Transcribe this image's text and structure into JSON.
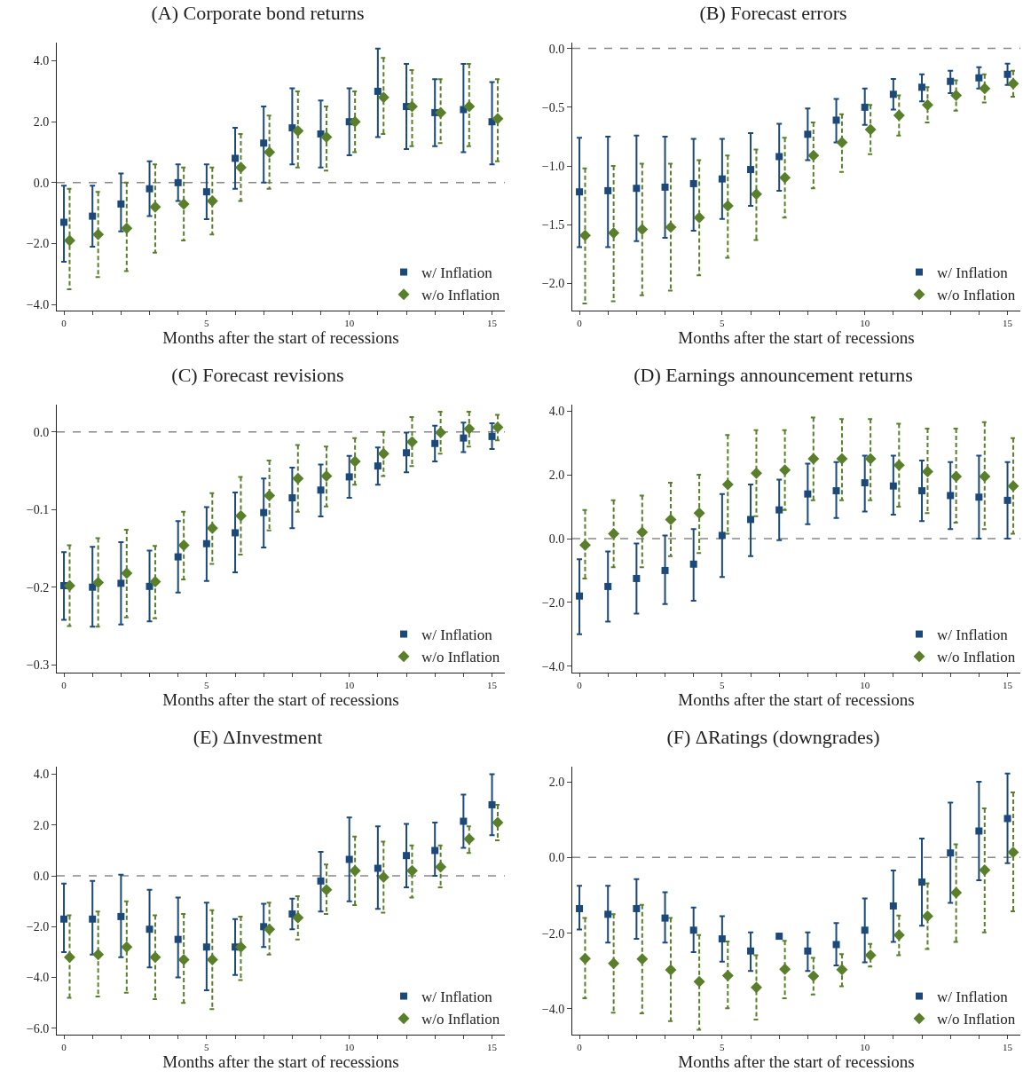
{
  "chart_data": [
    {
      "type": "scatter",
      "title": "(A) Corporate bond returns",
      "xlabel": "Months after the start of recessions",
      "legend": "bottom right",
      "grid": false,
      "xlim": [
        -0.25,
        15.45
      ],
      "xticks": [
        0,
        {
          "value": 1,
          "label": null
        },
        {
          "value": 2,
          "label": null
        },
        {
          "value": 3,
          "label": null
        },
        {
          "value": 4,
          "label": null
        },
        5,
        {
          "value": 6,
          "label": null
        },
        {
          "value": 7,
          "label": null
        },
        {
          "value": 8,
          "label": null
        },
        {
          "value": 9,
          "label": null
        },
        10,
        {
          "value": 11,
          "label": null
        },
        {
          "value": 12,
          "label": null
        },
        {
          "value": 13,
          "label": null
        },
        {
          "value": 14,
          "label": null
        },
        15
      ],
      "ylim": [
        -4.2,
        4.6
      ],
      "yticks": [
        {
          "value": -4,
          "label": "−4.0"
        },
        {
          "value": -2,
          "label": "−2.0"
        },
        {
          "value": 0,
          "label": "0.0"
        },
        {
          "value": 2,
          "label": "2.0"
        },
        {
          "value": 4,
          "label": "4.0"
        }
      ],
      "ref_lines": [
        {
          "axis": "y",
          "value": 0,
          "color": "#888888",
          "line_style": "dashed"
        }
      ],
      "series": [
        {
          "name": "w/ Inflation",
          "color": "#1b4a7a",
          "marker": "square",
          "line_style": "solid",
          "x": [
            0,
            1,
            2,
            3,
            4,
            5,
            6,
            7,
            8,
            9,
            10,
            11,
            12,
            13,
            14,
            15
          ],
          "values": [
            -1.3,
            -1.1,
            -0.7,
            -0.2,
            0.0,
            -0.3,
            0.8,
            1.3,
            1.8,
            1.6,
            2.0,
            3.0,
            2.5,
            2.3,
            2.4,
            2.0
          ],
          "errors": [
            [
              -2.6,
              -0.1
            ],
            [
              -2.1,
              -0.1
            ],
            [
              -1.6,
              0.3
            ],
            [
              -1.1,
              0.7
            ],
            [
              -0.6,
              0.6
            ],
            [
              -1.2,
              0.6
            ],
            [
              -0.2,
              1.8
            ],
            [
              0.0,
              2.5
            ],
            [
              0.6,
              3.1
            ],
            [
              0.5,
              2.7
            ],
            [
              0.9,
              3.1
            ],
            [
              1.5,
              4.4
            ],
            [
              1.1,
              3.9
            ],
            [
              1.2,
              3.4
            ],
            [
              1.0,
              3.9
            ],
            [
              0.6,
              3.3
            ]
          ]
        },
        {
          "name": "w/o Inflation",
          "color": "#5a7f2b",
          "marker": "diamond",
          "line_style": "dashed",
          "x": [
            0.2,
            1.2,
            2.2,
            3.2,
            4.2,
            5.2,
            6.2,
            7.2,
            8.2,
            9.2,
            10.2,
            11.2,
            12.2,
            13.2,
            14.2,
            15.2
          ],
          "values": [
            -1.9,
            -1.7,
            -1.5,
            -0.8,
            -0.7,
            -0.6,
            0.5,
            1.0,
            1.7,
            1.5,
            2.0,
            2.8,
            2.5,
            2.3,
            2.5,
            2.1
          ],
          "errors": [
            [
              -3.5,
              -0.2
            ],
            [
              -3.1,
              -0.3
            ],
            [
              -2.9,
              0.0
            ],
            [
              -2.3,
              0.6
            ],
            [
              -1.9,
              0.5
            ],
            [
              -1.7,
              0.5
            ],
            [
              -0.6,
              1.6
            ],
            [
              -0.2,
              2.2
            ],
            [
              0.5,
              3.0
            ],
            [
              0.4,
              2.5
            ],
            [
              1.0,
              3.0
            ],
            [
              1.6,
              4.1
            ],
            [
              1.2,
              3.7
            ],
            [
              1.3,
              3.4
            ],
            [
              1.2,
              3.9
            ],
            [
              0.7,
              3.4
            ]
          ]
        }
      ]
    },
    {
      "type": "scatter",
      "title": "(B) Forecast errors",
      "xlabel": "Months after the start of recessions",
      "legend": "bottom right",
      "grid": false,
      "xlim": [
        -0.25,
        15.45
      ],
      "xticks": [
        0,
        {
          "value": 1,
          "label": null
        },
        {
          "value": 2,
          "label": null
        },
        {
          "value": 3,
          "label": null
        },
        {
          "value": 4,
          "label": null
        },
        5,
        {
          "value": 6,
          "label": null
        },
        {
          "value": 7,
          "label": null
        },
        {
          "value": 8,
          "label": null
        },
        {
          "value": 9,
          "label": null
        },
        10,
        {
          "value": 11,
          "label": null
        },
        {
          "value": 12,
          "label": null
        },
        {
          "value": 13,
          "label": null
        },
        {
          "value": 14,
          "label": null
        },
        15
      ],
      "ylim": [
        -2.23,
        0.05
      ],
      "yticks": [
        {
          "value": -2,
          "label": "−2.0"
        },
        {
          "value": -1.5,
          "label": "−1.5"
        },
        {
          "value": -1,
          "label": "−1.0"
        },
        {
          "value": -0.5,
          "label": "−0.5"
        },
        {
          "value": 0,
          "label": "0.0"
        }
      ],
      "ref_lines": [
        {
          "axis": "y",
          "value": 0,
          "color": "#888888",
          "line_style": "dashed"
        }
      ],
      "series": [
        {
          "name": "w/ Inflation",
          "color": "#1b4a7a",
          "marker": "square",
          "line_style": "solid",
          "x": [
            0,
            1,
            2,
            3,
            4,
            5,
            6,
            7,
            8,
            9,
            10,
            11,
            12,
            13,
            14,
            15
          ],
          "values": [
            -1.22,
            -1.21,
            -1.19,
            -1.18,
            -1.15,
            -1.11,
            -1.03,
            -0.92,
            -0.73,
            -0.61,
            -0.5,
            -0.39,
            -0.33,
            -0.28,
            -0.25,
            -0.22
          ],
          "errors": [
            [
              -1.69,
              -0.76
            ],
            [
              -1.69,
              -0.75
            ],
            [
              -1.64,
              -0.74
            ],
            [
              -1.61,
              -0.75
            ],
            [
              -1.55,
              -0.77
            ],
            [
              -1.45,
              -0.77
            ],
            [
              -1.34,
              -0.72
            ],
            [
              -1.21,
              -0.64
            ],
            [
              -0.95,
              -0.51
            ],
            [
              -0.8,
              -0.43
            ],
            [
              -0.65,
              -0.34
            ],
            [
              -0.52,
              -0.26
            ],
            [
              -0.45,
              -0.22
            ],
            [
              -0.38,
              -0.19
            ],
            [
              -0.34,
              -0.16
            ],
            [
              -0.31,
              -0.13
            ]
          ]
        },
        {
          "name": "w/o Inflation",
          "color": "#5a7f2b",
          "marker": "diamond",
          "line_style": "dashed",
          "x": [
            0.2,
            1.2,
            2.2,
            3.2,
            4.2,
            5.2,
            6.2,
            7.2,
            8.2,
            9.2,
            10.2,
            11.2,
            12.2,
            13.2,
            14.2,
            15.2
          ],
          "values": [
            -1.59,
            -1.57,
            -1.54,
            -1.52,
            -1.44,
            -1.34,
            -1.24,
            -1.1,
            -0.91,
            -0.8,
            -0.69,
            -0.57,
            -0.48,
            -0.4,
            -0.34,
            -0.3
          ],
          "errors": [
            [
              -2.17,
              -1.02
            ],
            [
              -2.15,
              -1.0
            ],
            [
              -2.1,
              -0.98
            ],
            [
              -2.06,
              -0.98
            ],
            [
              -1.93,
              -0.95
            ],
            [
              -1.78,
              -0.91
            ],
            [
              -1.63,
              -0.86
            ],
            [
              -1.44,
              -0.76
            ],
            [
              -1.19,
              -0.63
            ],
            [
              -1.05,
              -0.56
            ],
            [
              -0.9,
              -0.48
            ],
            [
              -0.74,
              -0.4
            ],
            [
              -0.63,
              -0.33
            ],
            [
              -0.53,
              -0.27
            ],
            [
              -0.46,
              -0.22
            ],
            [
              -0.41,
              -0.19
            ]
          ]
        }
      ]
    },
    {
      "type": "scatter",
      "title": "(C) Forecast revisions",
      "xlabel": "Months after the start of recessions",
      "legend": "bottom right",
      "grid": false,
      "xlim": [
        -0.25,
        15.45
      ],
      "xticks": [
        0,
        {
          "value": 1,
          "label": null
        },
        {
          "value": 2,
          "label": null
        },
        {
          "value": 3,
          "label": null
        },
        {
          "value": 4,
          "label": null
        },
        5,
        {
          "value": 6,
          "label": null
        },
        {
          "value": 7,
          "label": null
        },
        {
          "value": 8,
          "label": null
        },
        {
          "value": 9,
          "label": null
        },
        10,
        {
          "value": 11,
          "label": null
        },
        {
          "value": 12,
          "label": null
        },
        {
          "value": 13,
          "label": null
        },
        {
          "value": 14,
          "label": null
        },
        15
      ],
      "ylim": [
        -0.31,
        0.035
      ],
      "yticks": [
        {
          "value": -0.3,
          "label": "−0.3"
        },
        {
          "value": -0.2,
          "label": "−0.2"
        },
        {
          "value": -0.1,
          "label": "−0.1"
        },
        {
          "value": 0,
          "label": "0.0"
        }
      ],
      "ref_lines": [
        {
          "axis": "y",
          "value": 0,
          "color": "#888888",
          "line_style": "dashed"
        }
      ],
      "series": [
        {
          "name": "w/ Inflation",
          "color": "#1b4a7a",
          "marker": "square",
          "line_style": "solid",
          "x": [
            0,
            1,
            2,
            3,
            4,
            5,
            6,
            7,
            8,
            9,
            10,
            11,
            12,
            13,
            14,
            15
          ],
          "values": [
            -0.198,
            -0.2,
            -0.195,
            -0.199,
            -0.161,
            -0.144,
            -0.13,
            -0.104,
            -0.085,
            -0.075,
            -0.058,
            -0.044,
            -0.027,
            -0.015,
            -0.008,
            -0.006
          ],
          "errors": [
            [
              -0.242,
              -0.155
            ],
            [
              -0.251,
              -0.148
            ],
            [
              -0.248,
              -0.142
            ],
            [
              -0.244,
              -0.153
            ],
            [
              -0.207,
              -0.115
            ],
            [
              -0.192,
              -0.097
            ],
            [
              -0.181,
              -0.078
            ],
            [
              -0.149,
              -0.06
            ],
            [
              -0.124,
              -0.046
            ],
            [
              -0.109,
              -0.042
            ],
            [
              -0.085,
              -0.031
            ],
            [
              -0.068,
              -0.02
            ],
            [
              -0.052,
              -0.001
            ],
            [
              -0.038,
              0.008
            ],
            [
              -0.026,
              0.012
            ],
            [
              -0.022,
              0.011
            ]
          ]
        },
        {
          "name": "w/o Inflation",
          "color": "#5a7f2b",
          "marker": "diamond",
          "line_style": "dashed",
          "x": [
            0.2,
            1.2,
            2.2,
            3.2,
            4.2,
            5.2,
            6.2,
            7.2,
            8.2,
            9.2,
            10.2,
            11.2,
            12.2,
            13.2,
            14.2,
            15.2
          ],
          "values": [
            -0.198,
            -0.194,
            -0.182,
            -0.193,
            -0.146,
            -0.124,
            -0.108,
            -0.082,
            -0.06,
            -0.057,
            -0.038,
            -0.028,
            -0.013,
            -0.001,
            0.004,
            0.006
          ],
          "errors": [
            [
              -0.25,
              -0.146
            ],
            [
              -0.251,
              -0.137
            ],
            [
              -0.239,
              -0.126
            ],
            [
              -0.24,
              -0.147
            ],
            [
              -0.19,
              -0.103
            ],
            [
              -0.17,
              -0.079
            ],
            [
              -0.158,
              -0.058
            ],
            [
              -0.127,
              -0.037
            ],
            [
              -0.103,
              -0.017
            ],
            [
              -0.096,
              -0.019
            ],
            [
              -0.068,
              -0.008
            ],
            [
              -0.057,
              0.0
            ],
            [
              -0.044,
              0.019
            ],
            [
              -0.028,
              0.026
            ],
            [
              -0.019,
              0.026
            ],
            [
              -0.011,
              0.022
            ]
          ]
        }
      ]
    },
    {
      "type": "scatter",
      "title": "(D) Earnings announcement returns",
      "xlabel": "Months after the start of recessions",
      "legend": "bottom right",
      "grid": false,
      "xlim": [
        -0.25,
        15.45
      ],
      "xticks": [
        0,
        {
          "value": 1,
          "label": null
        },
        {
          "value": 2,
          "label": null
        },
        {
          "value": 3,
          "label": null
        },
        {
          "value": 4,
          "label": null
        },
        5,
        {
          "value": 6,
          "label": null
        },
        {
          "value": 7,
          "label": null
        },
        {
          "value": 8,
          "label": null
        },
        {
          "value": 9,
          "label": null
        },
        10,
        {
          "value": 11,
          "label": null
        },
        {
          "value": 12,
          "label": null
        },
        {
          "value": 13,
          "label": null
        },
        {
          "value": 14,
          "label": null
        },
        15
      ],
      "ylim": [
        -4.2,
        4.2
      ],
      "yticks": [
        {
          "value": -4,
          "label": "−4.0"
        },
        {
          "value": -2,
          "label": "−2.0"
        },
        {
          "value": 0,
          "label": "0.0"
        },
        {
          "value": 2,
          "label": "2.0"
        },
        {
          "value": 4,
          "label": "4.0"
        }
      ],
      "ref_lines": [
        {
          "axis": "y",
          "value": 0,
          "color": "#888888",
          "line_style": "dashed"
        }
      ],
      "series": [
        {
          "name": "w/ Inflation",
          "color": "#1b4a7a",
          "marker": "square",
          "line_style": "solid",
          "x": [
            0,
            1,
            2,
            3,
            4,
            5,
            6,
            7,
            8,
            9,
            10,
            11,
            12,
            13,
            14,
            15
          ],
          "values": [
            -1.8,
            -1.5,
            -1.25,
            -1.0,
            -0.8,
            0.1,
            0.6,
            0.9,
            1.4,
            1.5,
            1.75,
            1.65,
            1.5,
            1.35,
            1.3,
            1.2
          ],
          "errors": [
            [
              -3.0,
              -0.65
            ],
            [
              -2.6,
              -0.4
            ],
            [
              -2.35,
              -0.15
            ],
            [
              -2.05,
              0.1
            ],
            [
              -1.95,
              0.3
            ],
            [
              -1.2,
              1.4
            ],
            [
              -0.55,
              1.7
            ],
            [
              -0.05,
              1.85
            ],
            [
              0.45,
              2.35
            ],
            [
              0.65,
              2.4
            ],
            [
              0.85,
              2.6
            ],
            [
              0.75,
              2.6
            ],
            [
              0.55,
              2.45
            ],
            [
              0.3,
              2.4
            ],
            [
              0.0,
              2.6
            ],
            [
              0.0,
              2.4
            ]
          ]
        },
        {
          "name": "w/o Inflation",
          "color": "#5a7f2b",
          "marker": "diamond",
          "line_style": "dashed",
          "x": [
            0.2,
            1.2,
            2.2,
            3.2,
            4.2,
            5.2,
            6.2,
            7.2,
            8.2,
            9.2,
            10.2,
            11.2,
            12.2,
            13.2,
            14.2,
            15.2
          ],
          "values": [
            -0.2,
            0.15,
            0.2,
            0.6,
            0.8,
            1.7,
            2.05,
            2.15,
            2.5,
            2.5,
            2.5,
            2.3,
            2.1,
            1.95,
            1.95,
            1.65
          ],
          "errors": [
            [
              -1.25,
              0.9
            ],
            [
              -0.9,
              1.2
            ],
            [
              -0.9,
              1.35
            ],
            [
              -0.55,
              1.75
            ],
            [
              -0.45,
              2.0
            ],
            [
              0.15,
              3.25
            ],
            [
              0.7,
              3.4
            ],
            [
              0.9,
              3.4
            ],
            [
              1.2,
              3.8
            ],
            [
              1.2,
              3.75
            ],
            [
              1.2,
              3.75
            ],
            [
              1.0,
              3.6
            ],
            [
              0.8,
              3.45
            ],
            [
              0.5,
              3.45
            ],
            [
              0.3,
              3.65
            ],
            [
              0.15,
              3.15
            ]
          ]
        }
      ]
    },
    {
      "type": "scatter",
      "title": "(E) ΔInvestment",
      "xlabel": "Months after the start of recessions",
      "legend": "bottom right",
      "grid": false,
      "xlim": [
        -0.25,
        15.45
      ],
      "xticks": [
        0,
        {
          "value": 1,
          "label": null
        },
        {
          "value": 2,
          "label": null
        },
        {
          "value": 3,
          "label": null
        },
        {
          "value": 4,
          "label": null
        },
        5,
        {
          "value": 6,
          "label": null
        },
        {
          "value": 7,
          "label": null
        },
        {
          "value": 8,
          "label": null
        },
        {
          "value": 9,
          "label": null
        },
        10,
        {
          "value": 11,
          "label": null
        },
        {
          "value": 12,
          "label": null
        },
        {
          "value": 13,
          "label": null
        },
        {
          "value": 14,
          "label": null
        },
        15
      ],
      "ylim": [
        -6.25,
        4.3
      ],
      "yticks": [
        {
          "value": -6,
          "label": "−6.0"
        },
        {
          "value": -4,
          "label": "−4.0"
        },
        {
          "value": -2,
          "label": "−2.0"
        },
        {
          "value": 0,
          "label": "0.0"
        },
        {
          "value": 2,
          "label": "2.0"
        },
        {
          "value": 4,
          "label": "4.0"
        }
      ],
      "ref_lines": [
        {
          "axis": "y",
          "value": 0,
          "color": "#888888",
          "line_style": "dashed"
        }
      ],
      "series": [
        {
          "name": "w/ Inflation",
          "color": "#1b4a7a",
          "marker": "square",
          "line_style": "solid",
          "x": [
            0,
            1,
            2,
            3,
            4,
            5,
            6,
            7,
            8,
            9,
            10,
            11,
            12,
            13,
            14,
            15
          ],
          "values": [
            -1.7,
            -1.7,
            -1.6,
            -2.1,
            -2.5,
            -2.8,
            -2.8,
            -2.0,
            -1.5,
            -0.2,
            0.65,
            0.3,
            0.8,
            1.0,
            2.15,
            2.8
          ],
          "errors": [
            [
              -3.0,
              -0.3
            ],
            [
              -3.1,
              -0.2
            ],
            [
              -3.2,
              0.05
            ],
            [
              -3.6,
              -0.55
            ],
            [
              -4.0,
              -0.85
            ],
            [
              -4.5,
              -1.05
            ],
            [
              -3.9,
              -1.7
            ],
            [
              -2.8,
              -1.1
            ],
            [
              -2.1,
              -0.9
            ],
            [
              -1.4,
              0.95
            ],
            [
              -1.0,
              2.3
            ],
            [
              -1.3,
              1.95
            ],
            [
              -0.45,
              2.05
            ],
            [
              0.0,
              2.1
            ],
            [
              1.1,
              3.2
            ],
            [
              1.6,
              4.0
            ]
          ]
        },
        {
          "name": "w/o Inflation",
          "color": "#5a7f2b",
          "marker": "diamond",
          "line_style": "dashed",
          "x": [
            0.2,
            1.2,
            2.2,
            3.2,
            4.2,
            5.2,
            6.2,
            7.2,
            8.2,
            9.2,
            10.2,
            11.2,
            12.2,
            13.2,
            14.2,
            15.2
          ],
          "values": [
            -3.2,
            -3.1,
            -2.8,
            -3.2,
            -3.3,
            -3.3,
            -2.8,
            -2.1,
            -1.65,
            -0.55,
            0.2,
            -0.05,
            0.2,
            0.35,
            1.45,
            2.1
          ],
          "errors": [
            [
              -4.8,
              -1.55
            ],
            [
              -4.75,
              -1.4
            ],
            [
              -4.6,
              -1.0
            ],
            [
              -4.85,
              -1.55
            ],
            [
              -5.0,
              -1.5
            ],
            [
              -5.25,
              -1.35
            ],
            [
              -4.1,
              -1.6
            ],
            [
              -3.1,
              -1.05
            ],
            [
              -2.5,
              -0.8
            ],
            [
              -1.5,
              0.45
            ],
            [
              -1.15,
              1.55
            ],
            [
              -1.45,
              1.35
            ],
            [
              -0.85,
              1.2
            ],
            [
              -0.45,
              1.2
            ],
            [
              0.9,
              1.95
            ],
            [
              1.4,
              2.8
            ]
          ]
        }
      ]
    },
    {
      "type": "scatter",
      "title": "(F) ΔRatings (downgrades)",
      "xlabel": "Months after the start of recessions",
      "legend": "bottom right",
      "grid": false,
      "xlim": [
        -0.25,
        15.45
      ],
      "xticks": [
        0,
        {
          "value": 1,
          "label": null
        },
        {
          "value": 2,
          "label": null
        },
        {
          "value": 3,
          "label": null
        },
        {
          "value": 4,
          "label": null
        },
        5,
        {
          "value": 6,
          "label": null
        },
        {
          "value": 7,
          "label": null
        },
        {
          "value": 8,
          "label": null
        },
        {
          "value": 9,
          "label": null
        },
        10,
        {
          "value": 11,
          "label": null
        },
        {
          "value": 12,
          "label": null
        },
        {
          "value": 13,
          "label": null
        },
        {
          "value": 14,
          "label": null
        },
        15
      ],
      "ylim": [
        -4.68,
        2.4
      ],
      "yticks": [
        {
          "value": -4,
          "label": "−4.0"
        },
        {
          "value": -2,
          "label": "−2.0"
        },
        {
          "value": 0,
          "label": "0.0"
        },
        {
          "value": 2,
          "label": "2.0"
        }
      ],
      "ref_lines": [
        {
          "axis": "y",
          "value": 0,
          "color": "#888888",
          "line_style": "dashed"
        }
      ],
      "series": [
        {
          "name": "w/ Inflation",
          "color": "#1b4a7a",
          "marker": "square",
          "line_style": "solid",
          "x": [
            0,
            1,
            2,
            3,
            4,
            5,
            6,
            7,
            8,
            9,
            10,
            11,
            12,
            13,
            14,
            15
          ],
          "values": [
            -1.35,
            -1.5,
            -1.35,
            -1.6,
            -1.92,
            -2.15,
            -2.47,
            -2.08,
            -2.47,
            -2.3,
            -1.92,
            -1.28,
            -0.65,
            0.12,
            0.7,
            1.03
          ],
          "errors": [
            [
              -1.9,
              -0.75
            ],
            [
              -2.25,
              -0.75
            ],
            [
              -2.15,
              -0.57
            ],
            [
              -2.25,
              -0.92
            ],
            [
              -2.5,
              -1.32
            ],
            [
              -2.75,
              -1.55
            ],
            [
              -3.0,
              -1.98
            ],
            [
              -2.12,
              -2.02
            ],
            [
              -3.0,
              -1.98
            ],
            [
              -2.85,
              -1.73
            ],
            [
              -2.77,
              -1.08
            ],
            [
              -2.23,
              -0.34
            ],
            [
              -1.8,
              0.5
            ],
            [
              -1.2,
              1.45
            ],
            [
              -0.6,
              2.0
            ],
            [
              -0.15,
              2.22
            ]
          ]
        },
        {
          "name": "w/o Inflation",
          "color": "#5a7f2b",
          "marker": "diamond",
          "line_style": "dashed",
          "x": [
            0.2,
            1.2,
            2.2,
            3.2,
            4.2,
            5.2,
            6.2,
            7.2,
            8.2,
            9.2,
            10.2,
            11.2,
            12.2,
            13.2,
            14.2,
            15.2
          ],
          "values": [
            -2.67,
            -2.8,
            -2.68,
            -2.97,
            -3.28,
            -3.12,
            -3.43,
            -2.95,
            -3.13,
            -2.96,
            -2.58,
            -2.05,
            -1.55,
            -0.93,
            -0.33,
            0.14
          ],
          "errors": [
            [
              -3.72,
              -1.6
            ],
            [
              -4.1,
              -1.5
            ],
            [
              -4.12,
              -1.25
            ],
            [
              -4.32,
              -1.6
            ],
            [
              -4.55,
              -2.05
            ],
            [
              -3.98,
              -2.22
            ],
            [
              -4.28,
              -2.58
            ],
            [
              -3.72,
              -2.2
            ],
            [
              -3.62,
              -2.65
            ],
            [
              -3.4,
              -2.55
            ],
            [
              -2.88,
              -2.28
            ],
            [
              -2.58,
              -1.53
            ],
            [
              -2.42,
              -0.68
            ],
            [
              -2.23,
              0.35
            ],
            [
              -1.98,
              1.3
            ],
            [
              -1.42,
              1.72
            ]
          ]
        }
      ]
    }
  ]
}
